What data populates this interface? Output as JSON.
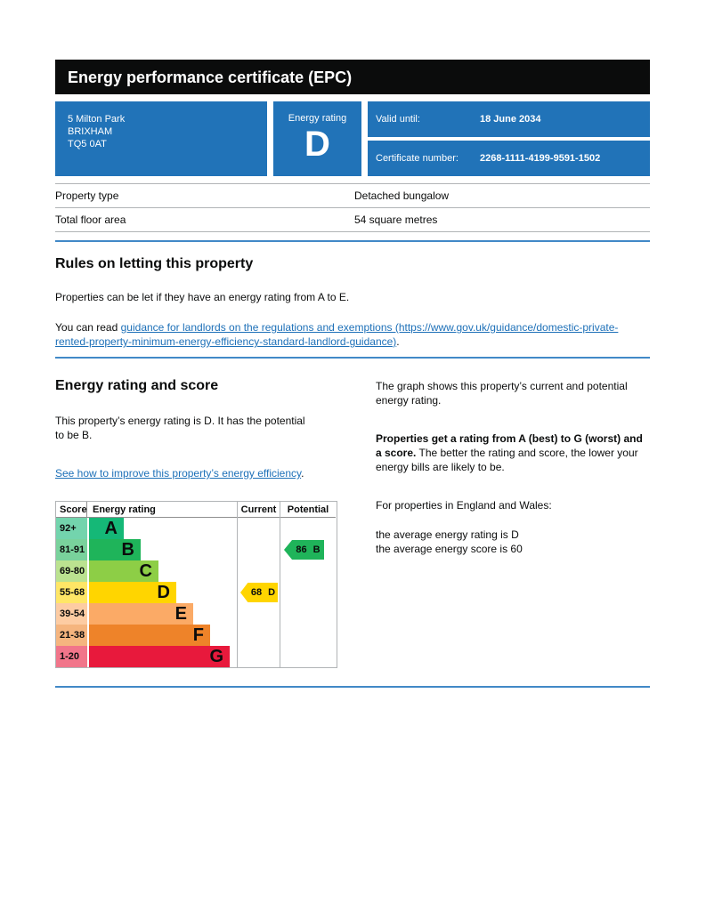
{
  "colors": {
    "panel_blue": "#2173b8",
    "rule_blue": "#4189c7",
    "link_blue": "#1d70b8",
    "text_black": "#0b0c0c",
    "titlebar_black": "#0b0c0c",
    "table_border_gray": "#b1b4b6",
    "chart_border_gray": "#b1b4b6"
  },
  "titlebar": {
    "title": "Energy performance certificate (EPC)"
  },
  "summary": {
    "address_lines": [
      "5 Milton Park",
      "BRIXHAM",
      "TQ5 0AT"
    ],
    "rating_box": {
      "label": "Energy rating",
      "value": "D"
    },
    "valid_until": {
      "label": "Valid until:",
      "value": "18 June 2034"
    },
    "certificate": {
      "label": "Certificate number:",
      "value": "2268-1111-4199-9591-1502"
    }
  },
  "property_table": {
    "rows": [
      {
        "label": "Property type",
        "value": "Detached bungalow"
      },
      {
        "label": "Total floor area",
        "value": "54 square metres"
      }
    ]
  },
  "rules_section": {
    "heading": "Rules on letting this property",
    "intro": "Properties can be let if they have an energy rating from A to E.",
    "link_prefix": "You can read ",
    "link_text": "guidance for landlords on the regulations and exemptions (https://www.gov.uk/guidance/domestic-private-rented-property-minimum-energy-efficiency-standard-landlord-guidance)",
    "link_suffix": "."
  },
  "rating_section": {
    "heading": "Energy rating and score",
    "summary_text": "This property’s energy rating is D. It has the potential to be B.",
    "improve_link_text": "See how to improve this property’s energy efficiency",
    "improve_link_suffix": ".",
    "graph_intro": "The graph shows this property’s current and potential energy rating.",
    "explain_bold": "Properties get a rating from A (best) to G (worst) and a score.",
    "explain_rest": " The better the rating and score, the lower your energy bills are likely to be.",
    "region_line": "For properties in England and Wales:",
    "average_rating_line": "the average energy rating is D",
    "average_score_line": "the average energy score is 60"
  },
  "chart_data": {
    "type": "epc_energy_rating_bands",
    "headers": {
      "score": "Score",
      "rating": "Energy rating",
      "current": "Current",
      "potential": "Potential"
    },
    "bands": [
      {
        "score_range": "92+",
        "letter": "A",
        "color": "#15b877",
        "width_frac": 0.235
      },
      {
        "score_range": "81-91",
        "letter": "B",
        "color": "#1fb45a",
        "width_frac": 0.35
      },
      {
        "score_range": "69-80",
        "letter": "C",
        "color": "#8dce46",
        "width_frac": 0.47
      },
      {
        "score_range": "55-68",
        "letter": "D",
        "color": "#ffd500",
        "width_frac": 0.59
      },
      {
        "score_range": "39-54",
        "letter": "E",
        "color": "#fbaa66",
        "width_frac": 0.705
      },
      {
        "score_range": "21-38",
        "letter": "F",
        "color": "#ee8329",
        "width_frac": 0.82
      },
      {
        "score_range": "1-20",
        "letter": "G",
        "color": "#e8193c",
        "width_frac": 0.95
      }
    ],
    "current": {
      "score": "68",
      "letter": "D",
      "band_index": 3,
      "color": "#ffd500"
    },
    "potential": {
      "score": "86",
      "letter": "B",
      "band_index": 1,
      "color": "#1fb45a"
    }
  }
}
